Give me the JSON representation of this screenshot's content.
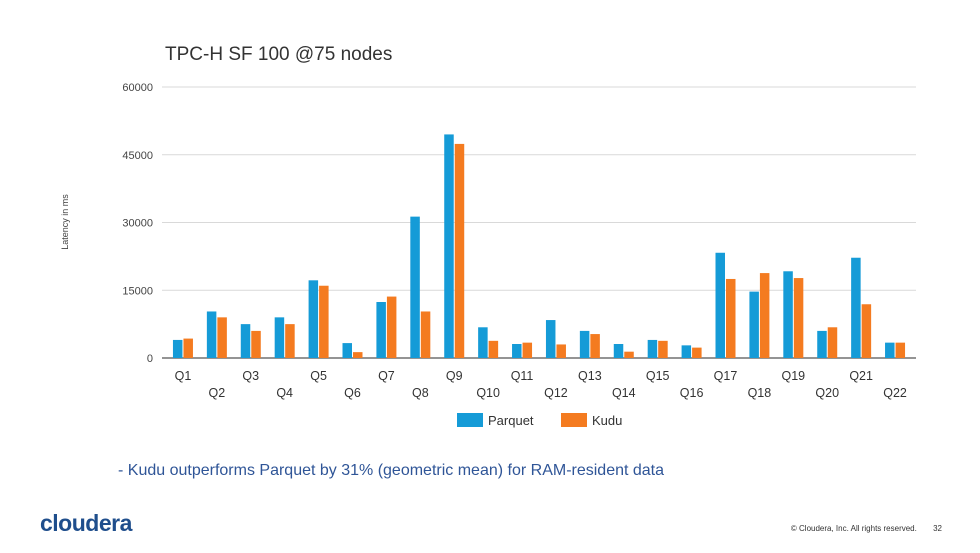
{
  "chart_data": {
    "type": "bar",
    "title": "TPC-H SF 100 @75 nodes",
    "ylabel": "Latency in ms",
    "xlabel": "",
    "ylim": [
      0,
      60000
    ],
    "yticks": [
      "0",
      "15000",
      "30000",
      "45000",
      "60000"
    ],
    "grid": true,
    "legend": "bottom",
    "categories": [
      "Q1",
      "Q2",
      "Q3",
      "Q4",
      "Q5",
      "Q6",
      "Q7",
      "Q8",
      "Q9",
      "Q10",
      "Q11",
      "Q12",
      "Q13",
      "Q14",
      "Q15",
      "Q16",
      "Q17",
      "Q18",
      "Q19",
      "Q20",
      "Q21",
      "Q22"
    ],
    "series": [
      {
        "name": "Parquet",
        "color": "#159bd7",
        "values": [
          4000,
          10300,
          7500,
          9000,
          17200,
          3300,
          12400,
          31300,
          49500,
          6800,
          3100,
          8400,
          6000,
          3100,
          4000,
          2800,
          23300,
          14700,
          19200,
          6000,
          22200,
          3400
        ]
      },
      {
        "name": "Kudu",
        "color": "#f47b20",
        "values": [
          4300,
          9000,
          6000,
          7500,
          16000,
          1300,
          13600,
          10300,
          47400,
          3800,
          3400,
          3000,
          5300,
          1400,
          3800,
          2300,
          17500,
          18800,
          17700,
          6800,
          11900,
          3400
        ]
      }
    ]
  },
  "caption": "- Kudu outperforms Parquet by 31% (geometric mean) for RAM-resident data",
  "footer": {
    "logo": "cloudera",
    "copyright": "© Cloudera, Inc. All rights reserved.",
    "page": "32"
  }
}
